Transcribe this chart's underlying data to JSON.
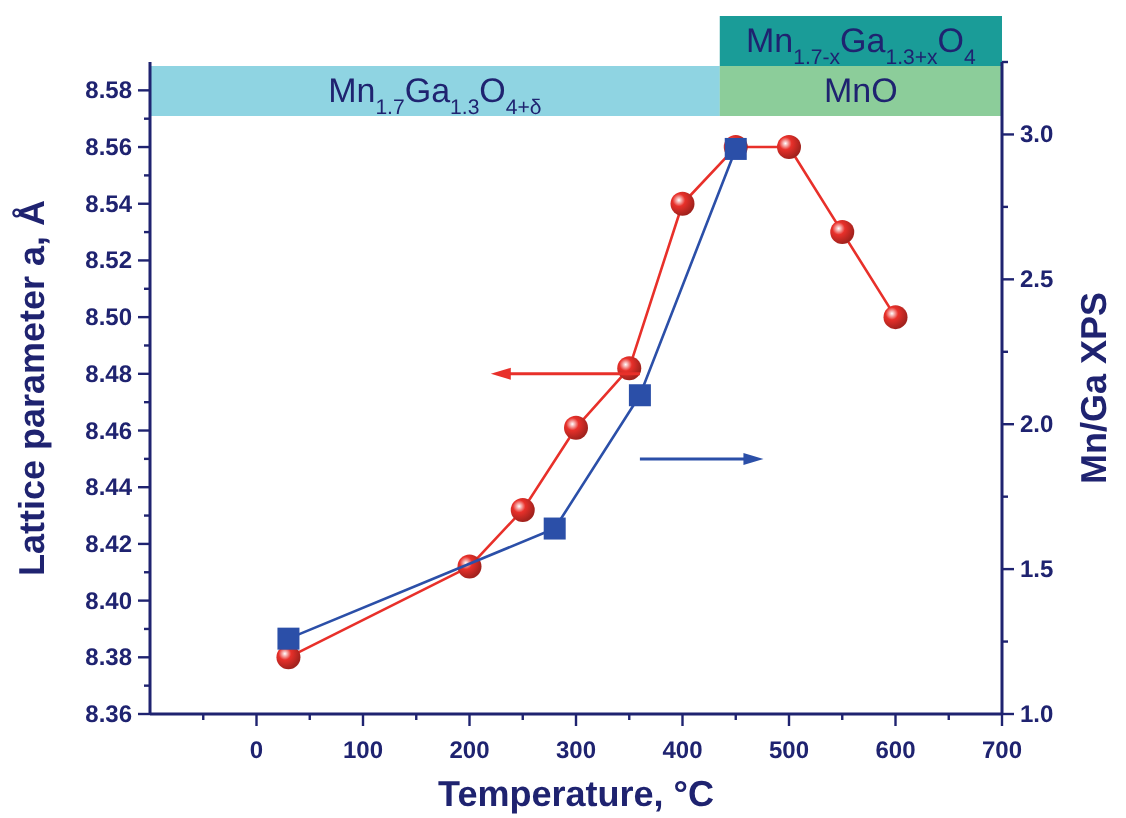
{
  "chart_data": {
    "type": "line",
    "xlabel": "Temperature, °C",
    "ylabel": "Lattice parameter a, Å",
    "y2label": "Mn/Ga XPS",
    "xlim": [
      -100,
      700
    ],
    "xticks": [
      {
        "value": -50,
        "label": null
      },
      0,
      {
        "value": 50,
        "label": null
      },
      100,
      {
        "value": 150,
        "label": null
      },
      200,
      {
        "value": 250,
        "label": null
      },
      300,
      {
        "value": 350,
        "label": null
      },
      400,
      {
        "value": 450,
        "label": null
      },
      500,
      {
        "value": 550,
        "label": null
      },
      600,
      {
        "value": 650,
        "label": null
      },
      700
    ],
    "ylim": [
      8.36,
      8.59
    ],
    "yticks": [
      {
        "value": 8.36,
        "label": "8.36"
      },
      {
        "value": 8.37,
        "label": null
      },
      {
        "value": 8.38,
        "label": "8.38"
      },
      {
        "value": 8.39,
        "label": null
      },
      {
        "value": 8.4,
        "label": "8.40"
      },
      {
        "value": 8.41,
        "label": null
      },
      {
        "value": 8.42,
        "label": "8.42"
      },
      {
        "value": 8.43,
        "label": null
      },
      {
        "value": 8.44,
        "label": "8.44"
      },
      {
        "value": 8.45,
        "label": null
      },
      {
        "value": 8.46,
        "label": "8.46"
      },
      {
        "value": 8.47,
        "label": null
      },
      {
        "value": 8.48,
        "label": "8.48"
      },
      {
        "value": 8.49,
        "label": null
      },
      {
        "value": 8.5,
        "label": "8.50"
      },
      {
        "value": 8.51,
        "label": null
      },
      {
        "value": 8.52,
        "label": "8.52"
      },
      {
        "value": 8.53,
        "label": null
      },
      {
        "value": 8.54,
        "label": "8.54"
      },
      {
        "value": 8.55,
        "label": null
      },
      {
        "value": 8.56,
        "label": "8.56"
      },
      {
        "value": 8.57,
        "label": null
      },
      {
        "value": 8.58,
        "label": "8.58"
      }
    ],
    "y2lim": [
      1.0,
      3.25
    ],
    "y2ticks": [
      {
        "value": 1.0,
        "label": "1.0"
      },
      {
        "value": 1.25,
        "label": null
      },
      {
        "value": 1.5,
        "label": "1.5"
      },
      {
        "value": 1.75,
        "label": null
      },
      {
        "value": 2.0,
        "label": "2.0"
      },
      {
        "value": 2.25,
        "label": null
      },
      {
        "value": 2.5,
        "label": "2.5"
      },
      {
        "value": 2.75,
        "label": null
      },
      {
        "value": 3.0,
        "label": "3.0"
      },
      {
        "value": 3.25,
        "label": null
      }
    ],
    "grid": false,
    "line_style": "solid",
    "series": [
      {
        "color": "#e8302a",
        "marker": "circle",
        "x": [
          30,
          200,
          250,
          300,
          350,
          400,
          450,
          500,
          550,
          600
        ],
        "values": [
          8.38,
          8.412,
          8.432,
          8.461,
          8.482,
          8.54,
          8.56,
          8.56,
          8.53,
          8.5
        ]
      },
      {
        "color": "#2b4fa8",
        "marker": "square",
        "axis": "y2",
        "x": [
          30,
          280,
          360,
          450
        ],
        "values": [
          1.26,
          1.64,
          2.1,
          2.95
        ]
      }
    ],
    "bands": [
      {
        "axis": "x",
        "from": -100,
        "to": 435,
        "label": "Mn$_{1.7}$Ga$_{1.3}$O$_{4+δ}$",
        "color": "#8fd4e2"
      },
      {
        "axis": "x",
        "from": 435,
        "to": 700,
        "label": "Mn$_{1.7-x}$Ga$_{1.3+x}$O$_{4}$",
        "color": "#1a9c98"
      },
      {
        "axis": "x",
        "from": 435,
        "to": 700,
        "label": "MnO",
        "color": "#8ccd9a"
      }
    ]
  }
}
